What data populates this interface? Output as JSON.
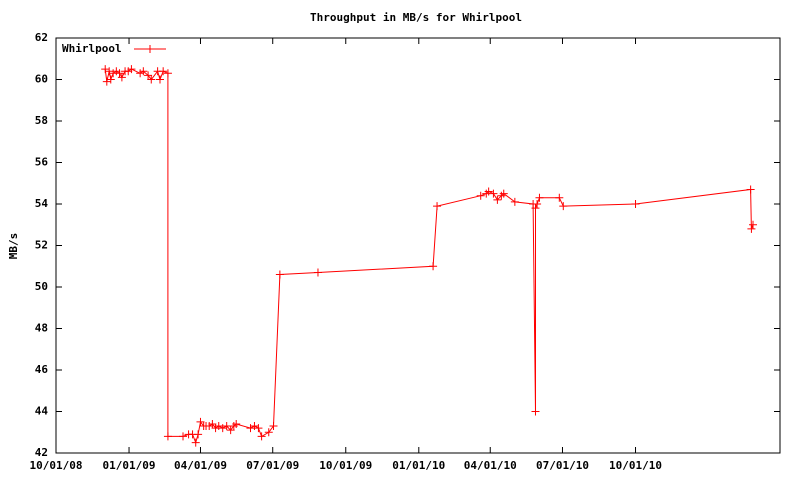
{
  "chart_data": {
    "type": "line",
    "title": "Throughput in MB/s for Whirlpool",
    "y_label": "MB/s",
    "x": [
      "2008-12-02",
      "2008-12-04",
      "2008-12-07",
      "2008-12-09",
      "2008-12-12",
      "2008-12-16",
      "2008-12-20",
      "2008-12-23",
      "2008-12-27",
      "2008-12-31",
      "2009-01-04",
      "2009-01-15",
      "2009-01-19",
      "2009-01-25",
      "2009-01-29",
      "2009-02-06",
      "2009-02-09",
      "2009-02-13",
      "2009-02-19",
      "2009-02-19",
      "2009-03-10",
      "2009-03-17",
      "2009-03-22",
      "2009-03-26",
      "2009-03-29",
      "2009-04-01",
      "2009-04-05",
      "2009-04-08",
      "2009-04-12",
      "2009-04-16",
      "2009-04-20",
      "2009-04-24",
      "2009-04-29",
      "2009-05-04",
      "2009-05-09",
      "2009-05-13",
      "2009-05-16",
      "2009-06-03",
      "2009-06-08",
      "2009-06-13",
      "2009-06-17",
      "2009-06-26",
      "2009-07-02",
      "2009-07-10",
      "2009-08-27",
      "2010-01-19",
      "2010-01-24",
      "2010-03-20",
      "2010-03-27",
      "2010-03-30",
      "2010-04-05",
      "2010-04-10",
      "2010-04-15",
      "2010-04-18",
      "2010-05-02",
      "2010-05-25",
      "2010-05-28",
      "2010-05-28",
      "2010-05-30",
      "2010-06-02",
      "2010-06-27",
      "2010-07-02",
      "2010-10-01",
      "2011-02-23",
      "2011-02-24",
      "2011-02-26"
    ],
    "series": [
      {
        "name": "Whirlpool",
        "color": "#ff0000",
        "values": [
          60.5,
          59.9,
          60.4,
          60.0,
          60.3,
          60.4,
          60.3,
          60.1,
          60.4,
          60.4,
          60.5,
          60.3,
          60.4,
          60.2,
          60.0,
          60.4,
          60.0,
          60.4,
          60.3,
          42.8,
          42.8,
          42.9,
          42.9,
          42.5,
          42.9,
          43.5,
          43.3,
          43.3,
          43.3,
          43.4,
          43.2,
          43.3,
          43.2,
          43.3,
          43.1,
          43.3,
          43.4,
          43.2,
          43.3,
          43.2,
          42.8,
          43.0,
          43.3,
          50.6,
          50.7,
          51.0,
          53.9,
          54.4,
          54.5,
          54.6,
          54.5,
          54.2,
          54.4,
          54.5,
          54.1,
          54.0,
          44.0,
          53.8,
          54.0,
          54.3,
          54.3,
          53.9,
          54.0,
          54.7,
          52.8,
          53.0
        ]
      }
    ],
    "xlim": [
      "2008-10-01",
      "2011-04-01"
    ],
    "xticks": [
      {
        "value": "2008-10-01",
        "label": "10/01/08"
      },
      {
        "value": "2009-01-01",
        "label": "01/01/09"
      },
      {
        "value": "2009-04-01",
        "label": "04/01/09"
      },
      {
        "value": "2009-07-01",
        "label": "07/01/09"
      },
      {
        "value": "2009-10-01",
        "label": "10/01/09"
      },
      {
        "value": "2010-01-01",
        "label": "01/01/10"
      },
      {
        "value": "2010-04-01",
        "label": "04/01/10"
      },
      {
        "value": "2010-07-01",
        "label": "07/01/10"
      },
      {
        "value": "2010-10-01",
        "label": "10/01/10"
      }
    ],
    "ylim": [
      42,
      62
    ],
    "yticks": [
      42,
      44,
      46,
      48,
      50,
      52,
      54,
      56,
      58,
      60,
      62
    ],
    "grid": false,
    "legend": "top-left"
  }
}
